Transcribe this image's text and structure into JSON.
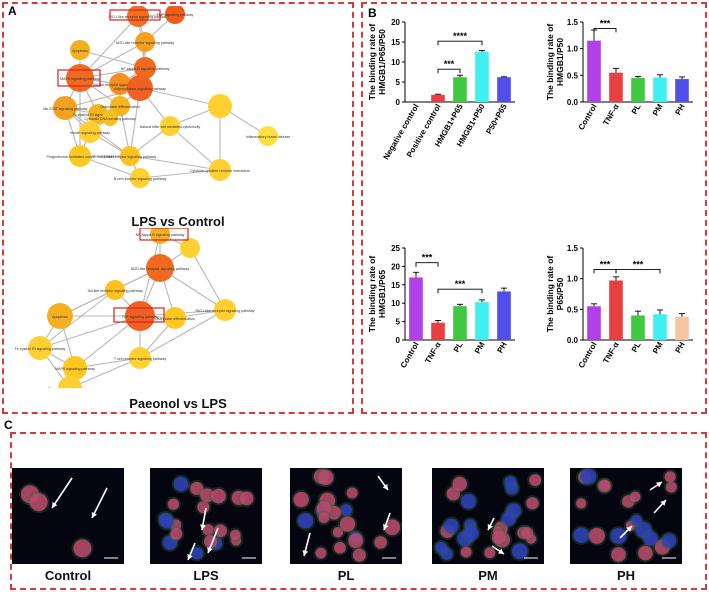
{
  "panel_labels": {
    "a": "A",
    "b": "B",
    "c": "C"
  },
  "network_lps": {
    "title": "LPS vs Control",
    "nodes": [
      "RIG-I-like receptor signaling pathway",
      "TNF signaling pathway",
      "NOD-like receptor signaling pathway",
      "Apoptosis",
      "NF-kappa B signaling pathway",
      "MAPK signaling pathway",
      "Jak-STAT signaling pathway",
      "Toll-like receptor signaling pathway",
      "Adipocytokine signaling pathway",
      "Fc epsilon RI signaling pathway",
      "Osteoclast differentiation",
      "Natural killer cell mediated cytotoxicity",
      "Cytosolic DNA-sensing pathway",
      "Insulin signaling pathway",
      "Progesterone-mediated oocyte maturation",
      "Cytokine-cytokine receptor interaction",
      "Inflammatory bowel disease",
      "T cell receptor signaling pathway",
      "B cell receptor signaling pathway"
    ]
  },
  "network_paeonol": {
    "title": "Paeonol vs LPS",
    "nodes": [
      "NF-kappa B signaling pathway",
      "NOD-like receptor signaling pathway",
      "Toll-like receptor signaling pathway",
      "Apoptosis",
      "TNF signaling pathway",
      "Osteoclast differentiation",
      "RIG-I-like receptor signaling pathway",
      "Fc epsilon RI signaling pathway",
      "MAPK signaling pathway",
      "T cell receptor signaling pathway",
      "Estrogen signaling pathway"
    ]
  },
  "chart_data": [
    {
      "type": "bar",
      "categories": [
        "Negative control",
        "Positive control",
        "HMGB1+P65",
        "HMGB1+P50",
        "P50+P65"
      ],
      "values": [
        0,
        1.8,
        6.2,
        12.5,
        6.2
      ],
      "errors": [
        0,
        0.15,
        0.5,
        0.4,
        0.1
      ],
      "colors": [
        "#e84040",
        "#e84040",
        "#40c840",
        "#40f0f0",
        "#5050e8"
      ],
      "ylabel": "The binding rate of HMGB1/P65/P50",
      "ylim": [
        0,
        20
      ],
      "yticks": [
        "0",
        "5",
        "10",
        "15",
        "20"
      ],
      "sig": [
        "***",
        "****"
      ]
    },
    {
      "type": "bar",
      "categories": [
        "Control",
        "TNF-α",
        "PL",
        "PM",
        "PH"
      ],
      "values": [
        1.15,
        0.55,
        0.45,
        0.46,
        0.43
      ],
      "errors": [
        0.2,
        0.08,
        0.03,
        0.05,
        0.04
      ],
      "colors": [
        "#b040e8",
        "#e84040",
        "#40c840",
        "#40f0f0",
        "#5050e8"
      ],
      "ylabel": "The binding rate of HMGB1/P50",
      "ylim": [
        0,
        1.5
      ],
      "yticks": [
        "0.0",
        "0.5",
        "1.0",
        "1.5"
      ],
      "sig": [
        "***"
      ]
    },
    {
      "type": "bar",
      "categories": [
        "Control",
        "TNF-α",
        "PL",
        "PM",
        "PH"
      ],
      "values": [
        17,
        4.7,
        9.2,
        10.3,
        13.2
      ],
      "errors": [
        1.4,
        0.6,
        0.5,
        0.6,
        0.9
      ],
      "colors": [
        "#b040e8",
        "#e84040",
        "#40c840",
        "#40f0f0",
        "#5050e8"
      ],
      "ylabel": "The binding rate of HMGB1/P65",
      "ylim": [
        0,
        25
      ],
      "yticks": [
        "0",
        "5",
        "10",
        "15",
        "20",
        "25"
      ],
      "sig": [
        "***",
        "***"
      ]
    },
    {
      "type": "bar",
      "categories": [
        "Control",
        "TNF-α",
        "PL",
        "PM",
        "PH"
      ],
      "values": [
        0.55,
        0.97,
        0.4,
        0.42,
        0.38
      ],
      "errors": [
        0.04,
        0.06,
        0.07,
        0.07,
        0.05
      ],
      "colors": [
        "#b040e8",
        "#e84040",
        "#40c840",
        "#40f0f0",
        "#f5c6a0"
      ],
      "ylabel": "The binding rate of P65/P50",
      "ylim": [
        0,
        1.5
      ],
      "yticks": [
        "0.0",
        "0.5",
        "1.0",
        "1.5"
      ],
      "sig": [
        "***",
        "***"
      ]
    }
  ],
  "micrographs": [
    "Control",
    "LPS",
    "PL",
    "PM",
    "PH"
  ]
}
